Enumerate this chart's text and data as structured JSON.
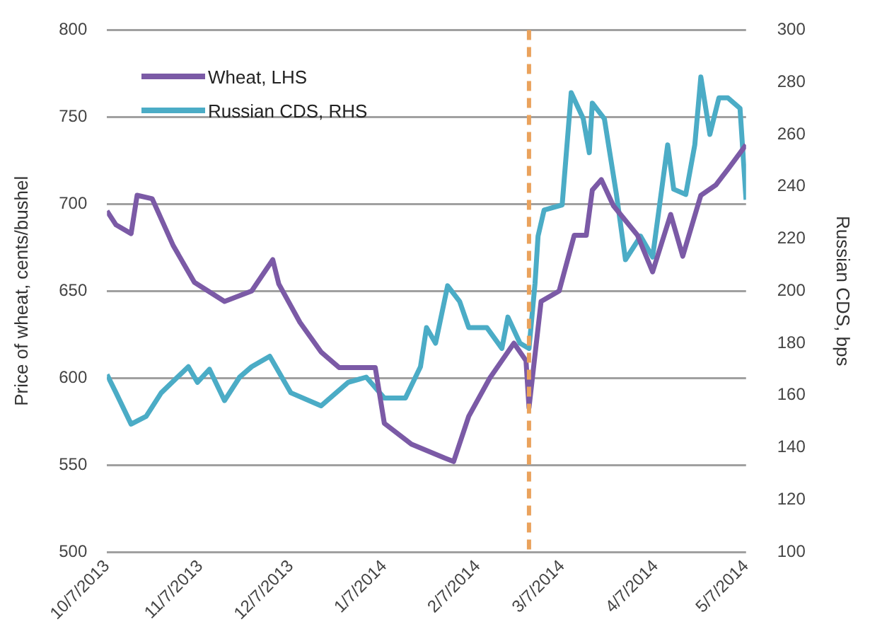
{
  "chart_data": {
    "type": "line",
    "xlabel": null,
    "ylabel": "Price of wheat, cents/bushel",
    "y2label": "Russian CDS, bps",
    "xlim": [
      "2013-10-07",
      "2014-05-07"
    ],
    "xticks": [
      {
        "value": "2013-10-07",
        "label": "10/7/2013"
      },
      {
        "value": "2013-11-07",
        "label": "11/7/2013"
      },
      {
        "value": "2013-12-07",
        "label": "12/7/2013"
      },
      {
        "value": "2014-01-07",
        "label": "1/7/2014"
      },
      {
        "value": "2014-02-07",
        "label": "2/7/2014"
      },
      {
        "value": "2014-03-07",
        "label": "3/7/2014"
      },
      {
        "value": "2014-04-07",
        "label": "4/7/2014"
      },
      {
        "value": "2014-05-07",
        "label": "5/7/2014"
      }
    ],
    "ylim": [
      500,
      800
    ],
    "yticks": [
      500,
      550,
      600,
      650,
      700,
      750,
      800
    ],
    "y2lim": [
      100,
      300
    ],
    "y2ticks": [
      100,
      120,
      140,
      160,
      180,
      200,
      220,
      240,
      260,
      280,
      300
    ],
    "grid": "y",
    "legend": "top left",
    "marker": "none",
    "line_style": "solid",
    "ref_lines": [
      {
        "axis": "x",
        "value": "2014-02-24",
        "color": "#eaa25c",
        "line_style": "dashed"
      }
    ],
    "series": [
      {
        "name": "Wheat, LHS",
        "color": "#7b5aa6",
        "x": [
          "2013-10-07",
          "2013-10-10",
          "2013-10-15",
          "2013-10-17",
          "2013-10-22",
          "2013-10-29",
          "2013-11-05",
          "2013-11-15",
          "2013-11-24",
          "2013-12-01",
          "2013-12-03",
          "2013-12-10",
          "2013-12-17",
          "2013-12-23",
          "2014-01-04",
          "2014-01-07",
          "2014-01-16",
          "2014-01-27",
          "2014-01-30",
          "2014-02-04",
          "2014-02-11",
          "2014-02-19",
          "2014-02-23",
          "2014-02-24",
          "2014-02-28",
          "2014-03-06",
          "2014-03-11",
          "2014-03-15",
          "2014-03-17",
          "2014-03-20",
          "2014-03-24",
          "2014-04-01",
          "2014-04-06",
          "2014-04-12",
          "2014-04-16",
          "2014-04-22",
          "2014-04-27",
          "2014-05-01",
          "2014-05-07"
        ],
        "values": [
          696,
          688,
          683,
          705,
          703,
          676,
          655,
          644,
          650,
          668,
          654,
          632,
          615,
          606,
          606,
          574,
          562,
          554,
          552,
          578,
          600,
          620,
          610,
          583,
          644,
          650,
          682,
          682,
          708,
          714,
          699,
          682,
          661,
          694,
          670,
          705,
          711,
          720,
          734
        ]
      },
      {
        "name": "Russian CDS, RHS",
        "color": "#4bacc6",
        "axis": "y2",
        "x": [
          "2013-10-07",
          "2013-10-10",
          "2013-10-15",
          "2013-10-20",
          "2013-10-25",
          "2013-11-03",
          "2013-11-06",
          "2013-11-10",
          "2013-11-15",
          "2013-11-20",
          "2013-11-24",
          "2013-11-30",
          "2013-12-07",
          "2013-12-17",
          "2013-12-26",
          "2014-01-01",
          "2014-01-07",
          "2014-01-14",
          "2014-01-19",
          "2014-01-21",
          "2014-01-24",
          "2014-01-28",
          "2014-02-01",
          "2014-02-04",
          "2014-02-10",
          "2014-02-15",
          "2014-02-17",
          "2014-02-21",
          "2014-02-24",
          "2014-02-26",
          "2014-02-27",
          "2014-03-01",
          "2014-03-07",
          "2014-03-10",
          "2014-03-14",
          "2014-03-16",
          "2014-03-17",
          "2014-03-21",
          "2014-03-25",
          "2014-03-28",
          "2014-04-02",
          "2014-04-06",
          "2014-04-11",
          "2014-04-13",
          "2014-04-17",
          "2014-04-20",
          "2014-04-22",
          "2014-04-25",
          "2014-04-28",
          "2014-05-01",
          "2014-05-05",
          "2014-05-07"
        ],
        "values": [
          168,
          161,
          149,
          152,
          161,
          171,
          165,
          170,
          158,
          167,
          171,
          175,
          161,
          156,
          165,
          167,
          159,
          159,
          171,
          186,
          180,
          202,
          196,
          186,
          186,
          178,
          190,
          180,
          178,
          203,
          221,
          231,
          233,
          276,
          266,
          253,
          272,
          266,
          237,
          212,
          221,
          213,
          256,
          239,
          237,
          256,
          282,
          260,
          274,
          274,
          270,
          235
        ]
      }
    ]
  }
}
